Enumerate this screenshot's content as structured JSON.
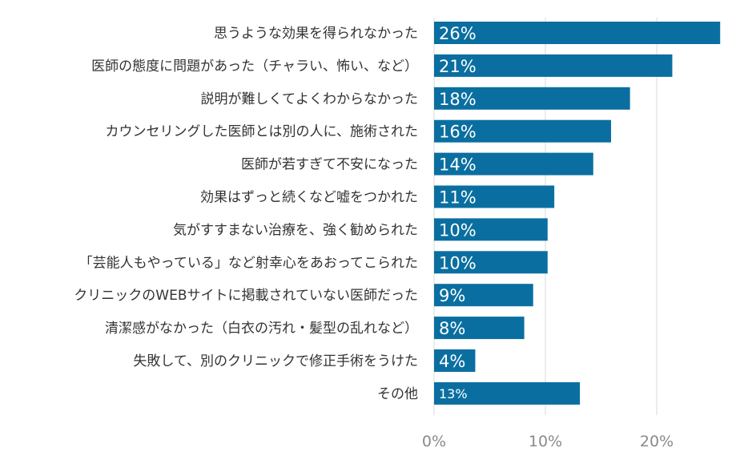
{
  "chart_data": {
    "type": "bar",
    "orientation": "horizontal",
    "categories": [
      "思うような効果を得られなかった",
      "医師の態度に問題があった（チャラい、怖い、など）",
      "説明が難しくてよくわからなかった",
      "カウンセリングした医師とは別の人に、施術された",
      "医師が若すぎて不安になった",
      "効果はずっと続くなど嘘をつかれた",
      "気がすすまない治療を、強く勧められた",
      "「芸能人もやっている」など射幸心をあおってこられた",
      "クリニックのWEBサイトに掲載されていない医師だった",
      "清潔感がなかった（白衣の汚れ・髪型の乱れなど）",
      "失敗して、別のクリニックで修正手術をうけた",
      "その他"
    ],
    "values": [
      25.7,
      21.4,
      17.6,
      15.9,
      14.3,
      10.8,
      10.2,
      10.2,
      8.9,
      8.1,
      3.7,
      13.1
    ],
    "data_labels": [
      "26%",
      "21%",
      "18%",
      "16%",
      "14%",
      "11%",
      "10%",
      "10%",
      "9%",
      "8%",
      "4%",
      "13%"
    ],
    "xlim": [
      0,
      26
    ],
    "xticks": [
      0,
      10,
      20
    ],
    "xtick_labels": [
      "0%",
      "10%",
      "20%"
    ],
    "grid": true,
    "bar_color": "#0a6fa0",
    "title": "",
    "xlabel": "",
    "ylabel": ""
  }
}
